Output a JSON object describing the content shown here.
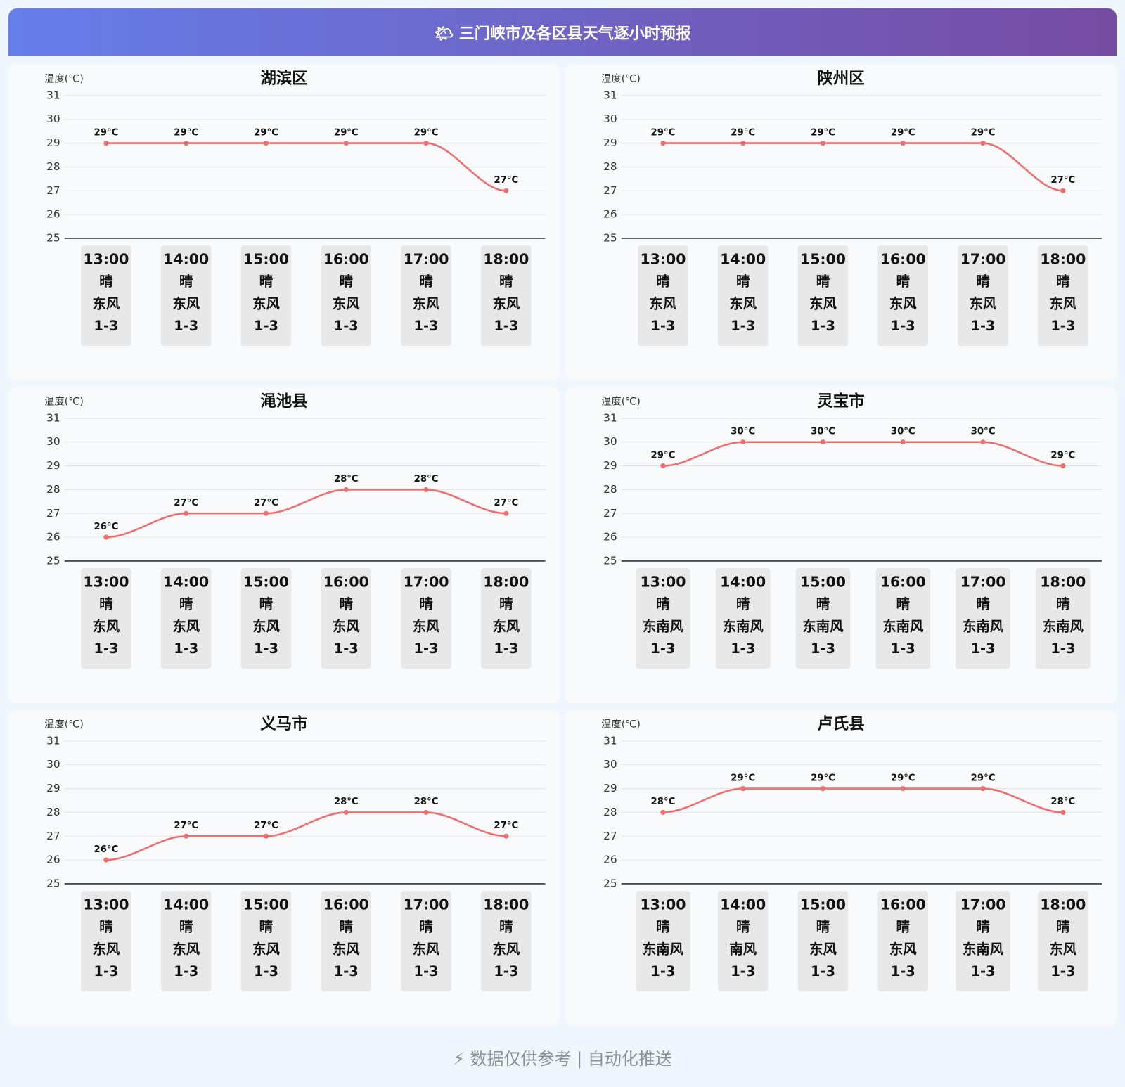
{
  "title": "🌤 三门峡市及各区县天气逐小时预报",
  "footer": "⚡ 数据仅供参考 | 自动化推送",
  "chart_data": [
    {
      "type": "line",
      "title": "湖滨区",
      "y_label": "温度(℃)",
      "color": "#f26d6d",
      "categories": [
        "13:00",
        "14:00",
        "15:00",
        "16:00",
        "17:00",
        "18:00"
      ],
      "values": [
        29,
        29,
        29,
        29,
        29,
        27
      ],
      "value_labels": [
        "29°C",
        "29°C",
        "29°C",
        "29°C",
        "29°C",
        "27°C"
      ],
      "weather": [
        "晴",
        "晴",
        "晴",
        "晴",
        "晴",
        "晴"
      ],
      "wind": [
        "东风",
        "东风",
        "东风",
        "东风",
        "东风",
        "东风"
      ],
      "wind_level": [
        "1-3",
        "1-3",
        "1-3",
        "1-3",
        "1-3",
        "1-3"
      ],
      "ylim": [
        25,
        31
      ],
      "yticks": [
        25,
        26,
        27,
        28,
        29,
        30,
        31
      ],
      "grid": true
    },
    {
      "type": "line",
      "title": "陕州区",
      "y_label": "温度(℃)",
      "color": "#f26d6d",
      "categories": [
        "13:00",
        "14:00",
        "15:00",
        "16:00",
        "17:00",
        "18:00"
      ],
      "values": [
        29,
        29,
        29,
        29,
        29,
        27
      ],
      "value_labels": [
        "29°C",
        "29°C",
        "29°C",
        "29°C",
        "29°C",
        "27°C"
      ],
      "weather": [
        "晴",
        "晴",
        "晴",
        "晴",
        "晴",
        "晴"
      ],
      "wind": [
        "东风",
        "东风",
        "东风",
        "东风",
        "东风",
        "东风"
      ],
      "wind_level": [
        "1-3",
        "1-3",
        "1-3",
        "1-3",
        "1-3",
        "1-3"
      ],
      "ylim": [
        25,
        31
      ],
      "yticks": [
        25,
        26,
        27,
        28,
        29,
        30,
        31
      ],
      "grid": true
    },
    {
      "type": "line",
      "title": "渑池县",
      "y_label": "温度(℃)",
      "color": "#f26d6d",
      "categories": [
        "13:00",
        "14:00",
        "15:00",
        "16:00",
        "17:00",
        "18:00"
      ],
      "values": [
        26,
        27,
        27,
        28,
        28,
        27
      ],
      "value_labels": [
        "26°C",
        "27°C",
        "27°C",
        "28°C",
        "28°C",
        "27°C"
      ],
      "weather": [
        "晴",
        "晴",
        "晴",
        "晴",
        "晴",
        "晴"
      ],
      "wind": [
        "东风",
        "东风",
        "东风",
        "东风",
        "东风",
        "东风"
      ],
      "wind_level": [
        "1-3",
        "1-3",
        "1-3",
        "1-3",
        "1-3",
        "1-3"
      ],
      "ylim": [
        25,
        31
      ],
      "yticks": [
        25,
        26,
        27,
        28,
        29,
        30,
        31
      ],
      "grid": true
    },
    {
      "type": "line",
      "title": "灵宝市",
      "y_label": "温度(℃)",
      "color": "#f26d6d",
      "categories": [
        "13:00",
        "14:00",
        "15:00",
        "16:00",
        "17:00",
        "18:00"
      ],
      "values": [
        29,
        30,
        30,
        30,
        30,
        29
      ],
      "value_labels": [
        "29°C",
        "30°C",
        "30°C",
        "30°C",
        "30°C",
        "29°C"
      ],
      "weather": [
        "晴",
        "晴",
        "晴",
        "晴",
        "晴",
        "晴"
      ],
      "wind": [
        "东南风",
        "东南风",
        "东南风",
        "东南风",
        "东南风",
        "东南风"
      ],
      "wind_level": [
        "1-3",
        "1-3",
        "1-3",
        "1-3",
        "1-3",
        "1-3"
      ],
      "ylim": [
        25,
        31
      ],
      "yticks": [
        25,
        26,
        27,
        28,
        29,
        30,
        31
      ],
      "grid": true
    },
    {
      "type": "line",
      "title": "义马市",
      "y_label": "温度(℃)",
      "color": "#f26d6d",
      "categories": [
        "13:00",
        "14:00",
        "15:00",
        "16:00",
        "17:00",
        "18:00"
      ],
      "values": [
        26,
        27,
        27,
        28,
        28,
        27
      ],
      "value_labels": [
        "26°C",
        "27°C",
        "27°C",
        "28°C",
        "28°C",
        "27°C"
      ],
      "weather": [
        "晴",
        "晴",
        "晴",
        "晴",
        "晴",
        "晴"
      ],
      "wind": [
        "东风",
        "东风",
        "东风",
        "东风",
        "东风",
        "东风"
      ],
      "wind_level": [
        "1-3",
        "1-3",
        "1-3",
        "1-3",
        "1-3",
        "1-3"
      ],
      "ylim": [
        25,
        31
      ],
      "yticks": [
        25,
        26,
        27,
        28,
        29,
        30,
        31
      ],
      "grid": true
    },
    {
      "type": "line",
      "title": "卢氏县",
      "y_label": "温度(℃)",
      "color": "#f26d6d",
      "categories": [
        "13:00",
        "14:00",
        "15:00",
        "16:00",
        "17:00",
        "18:00"
      ],
      "values": [
        28,
        29,
        29,
        29,
        29,
        28
      ],
      "value_labels": [
        "28°C",
        "29°C",
        "29°C",
        "29°C",
        "29°C",
        "28°C"
      ],
      "weather": [
        "晴",
        "晴",
        "晴",
        "晴",
        "晴",
        "晴"
      ],
      "wind": [
        "东南风",
        "南风",
        "东风",
        "东风",
        "东南风",
        "东风"
      ],
      "wind_level": [
        "1-3",
        "1-3",
        "1-3",
        "1-3",
        "1-3",
        "1-3"
      ],
      "ylim": [
        25,
        31
      ],
      "yticks": [
        25,
        26,
        27,
        28,
        29,
        30,
        31
      ],
      "grid": true
    }
  ]
}
